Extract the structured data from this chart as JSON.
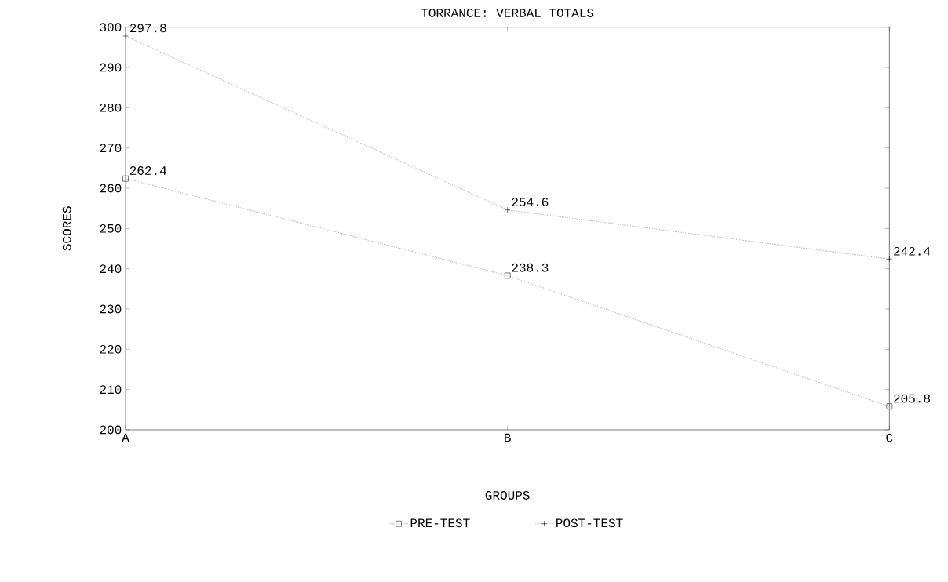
{
  "chart_data": {
    "type": "line",
    "title": "TORRANCE: VERBAL TOTALS",
    "xlabel": "GROUPS",
    "ylabel": "SCORES",
    "categories": [
      "A",
      "B",
      "C"
    ],
    "series": [
      {
        "name": "PRE-TEST",
        "color": "#000000",
        "marker": "square",
        "values": [
          262.4,
          238.3,
          205.8
        ],
        "value_labels": [
          "262.4",
          "238.3",
          "205.8"
        ]
      },
      {
        "name": "POST-TEST",
        "color": "#000000",
        "marker": "cross",
        "values": [
          297.8,
          254.6,
          242.4
        ],
        "value_labels": [
          "297.8",
          "254.6",
          "242.4"
        ]
      }
    ],
    "ylim": [
      200,
      300
    ],
    "yticks": [
      200,
      210,
      220,
      230,
      240,
      250,
      260,
      270,
      280,
      290,
      300
    ],
    "legend": "bottom",
    "grid": false,
    "line_style": "dotted"
  }
}
